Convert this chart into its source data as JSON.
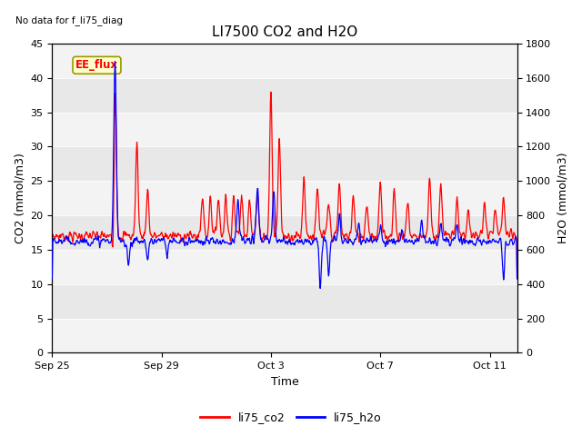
{
  "title": "LI7500 CO2 and H2O",
  "top_left_text": "No data for f_li75_diag",
  "xlabel": "Time",
  "ylabel_left": "CO2 (mmol/m3)",
  "ylabel_right": "H2O (mmol/m3)",
  "ylim_left": [
    0,
    45
  ],
  "ylim_right": [
    0,
    1800
  ],
  "yticks_left": [
    0,
    5,
    10,
    15,
    20,
    25,
    30,
    35,
    40,
    45
  ],
  "yticks_right": [
    0,
    200,
    400,
    600,
    800,
    1000,
    1200,
    1400,
    1600,
    1800
  ],
  "xtick_labels": [
    "Sep 25",
    "Sep 29",
    "Oct 3",
    "Oct 7",
    "Oct 11"
  ],
  "xtick_positions": [
    0,
    4,
    8,
    12,
    16
  ],
  "xlim": [
    0,
    17
  ],
  "legend_labels": [
    "li75_co2",
    "li75_h2o"
  ],
  "color_co2": "#ff0000",
  "color_h2o": "#0000ff",
  "annotation_text": "EE_flux",
  "annotation_box_facecolor": "#ffffcc",
  "annotation_box_edgecolor": "#999900",
  "plot_bg_color": "#e8e8e8",
  "stripe_color": "#d8d8d8",
  "title_fontsize": 11,
  "label_fontsize": 9,
  "tick_fontsize": 8,
  "linewidth": 0.9
}
